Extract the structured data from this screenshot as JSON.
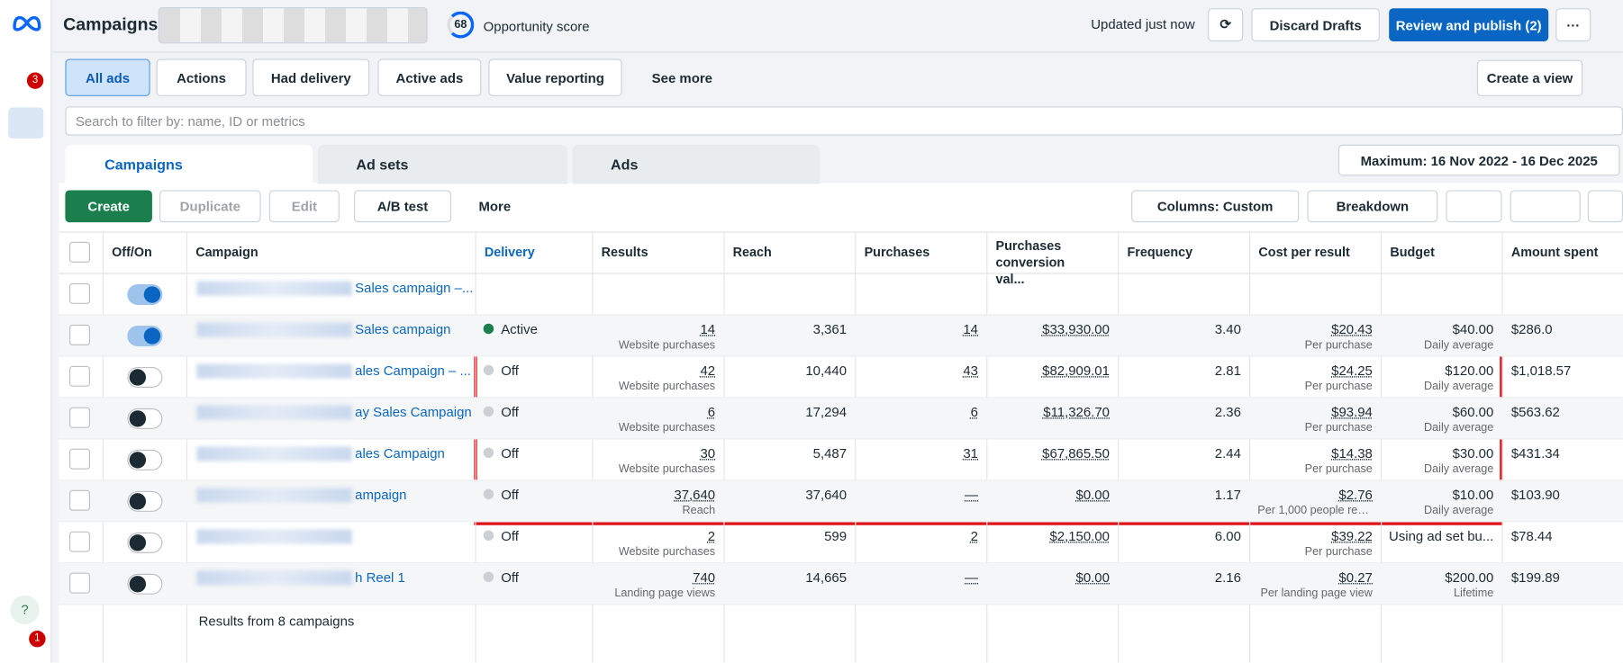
{
  "header": {
    "title": "Campaigns",
    "opportunity_score": "68",
    "opportunity_label": "Opportunity score",
    "updated": "Updated just now",
    "discard": "Discard Drafts",
    "publish": "Review and publish (2)"
  },
  "sidebar": {
    "notifications_badge": "3",
    "help_badge": "1"
  },
  "filters": [
    "All ads",
    "Actions",
    "Had delivery",
    "Active ads",
    "Value reporting",
    "See more"
  ],
  "create_view": "Create a view",
  "search_placeholder": "Search to filter by: name, ID or metrics",
  "tabs": [
    "Campaigns",
    "Ad sets",
    "Ads"
  ],
  "date_range": "Maximum: 16 Nov 2022 - 16 Dec 2025",
  "toolbar": {
    "create": "Create",
    "duplicate": "Duplicate",
    "edit": "Edit",
    "ab_test": "A/B test",
    "more": "More",
    "columns": "Columns: Custom",
    "breakdown": "Breakdown"
  },
  "table": {
    "columns": [
      "Off/On",
      "Campaign",
      "Delivery",
      "Results",
      "Reach",
      "Purchases",
      "Purchases conversion val...",
      "Frequency",
      "Cost per result",
      "Budget",
      "Amount spent"
    ],
    "rows": [
      {
        "name": "Sales campaign –...",
        "on": true
      },
      {
        "name": "Sales campaign",
        "on": true,
        "delivery": "Active",
        "results": "14",
        "results_label": "Website purchases",
        "reach": "3,361",
        "purchases": "14",
        "conv_value": "$33,930.00",
        "frequency": "3.40",
        "cost": "$20.43",
        "cost_label": "Per purchase",
        "budget": "$40.00",
        "budget_label": "Daily average",
        "spent": "$286.0"
      },
      {
        "name": "ales Campaign – ...",
        "on": false,
        "delivery": "Off",
        "results": "42",
        "results_label": "Website purchases",
        "reach": "10,440",
        "purchases": "43",
        "conv_value": "$82,909.01",
        "frequency": "2.81",
        "cost": "$24.25",
        "cost_label": "Per purchase",
        "budget": "$120.00",
        "budget_label": "Daily average",
        "spent": "$1,018.57"
      },
      {
        "name": "ay Sales Campaign",
        "on": false,
        "delivery": "Off",
        "results": "6",
        "results_label": "Website purchases",
        "reach": "17,294",
        "purchases": "6",
        "conv_value": "$11,326.70",
        "frequency": "2.36",
        "cost": "$93.94",
        "cost_label": "Per purchase",
        "budget": "$60.00",
        "budget_label": "Daily average",
        "spent": "$563.62"
      },
      {
        "name": "ales Campaign",
        "on": false,
        "delivery": "Off",
        "results": "30",
        "results_label": "Website purchases",
        "reach": "5,487",
        "purchases": "31",
        "conv_value": "$67,865.50",
        "frequency": "2.44",
        "cost": "$14.38",
        "cost_label": "Per purchase",
        "budget": "$30.00",
        "budget_label": "Daily average",
        "spent": "$431.34"
      },
      {
        "name": "ampaign",
        "on": false,
        "delivery": "Off",
        "results": "37,640",
        "results_label": "Reach",
        "reach": "37,640",
        "purchases": "—",
        "conv_value": "$0.00",
        "frequency": "1.17",
        "cost": "$2.76",
        "cost_label": "Per 1,000 people reac...",
        "budget": "$10.00",
        "budget_label": "Daily average",
        "spent": "$103.90"
      },
      {
        "on": false,
        "delivery": "Off",
        "results": "2",
        "results_label": "Website purchases",
        "reach": "599",
        "purchases": "2",
        "conv_value": "$2,150.00",
        "frequency": "6.00",
        "cost": "$39.22",
        "cost_label": "Per purchase",
        "budget": "Using ad set bu...",
        "spent": "$78.44"
      },
      {
        "name": "h Reel 1",
        "on": false,
        "delivery": "Off",
        "results": "740",
        "results_label": "Landing page views",
        "reach": "14,665",
        "purchases": "—",
        "conv_value": "$0.00",
        "frequency": "2.16",
        "cost": "$0.27",
        "cost_label": "Per landing page view",
        "budget": "$200.00",
        "budget_label": "Lifetime",
        "spent": "$199.89"
      }
    ],
    "footer": "Results from 8 campaigns"
  }
}
